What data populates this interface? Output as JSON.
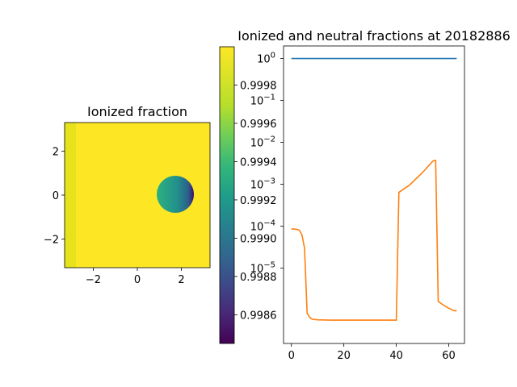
{
  "chart_data": [
    {
      "type": "heatmap",
      "title": "Ionized fraction",
      "xlim": [
        -3.3,
        3.3
      ],
      "ylim": [
        -3.3,
        3.3
      ],
      "xticks": [
        -2,
        0,
        2
      ],
      "yticks": [
        -2,
        0,
        2
      ],
      "tick_labels_x": [
        "−2",
        "0",
        "2"
      ],
      "tick_labels_y": [
        "−2",
        "0",
        "2"
      ],
      "background_value": 1.0,
      "left_strip": {
        "x_range": [
          -3.3,
          -2.9
        ],
        "value": 0.9999
      },
      "blob": {
        "center": [
          1.7,
          -0.2
        ],
        "radius": 0.85,
        "value_left": 0.9993,
        "value_right": 0.9985
      },
      "colormap": "viridis",
      "colorbar": {
        "range": [
          0.99845,
          1.0
        ],
        "ticks": [
          0.9986,
          0.9988,
          0.999,
          0.9992,
          0.9994,
          0.9996,
          0.9998
        ],
        "tick_labels": [
          "0.9986",
          "0.9988",
          "0.9990",
          "0.9992",
          "0.9994",
          "0.9996",
          "0.9998"
        ]
      },
      "grid": false
    },
    {
      "type": "line",
      "title": "Ionized and neutral fractions at 20182886",
      "xlim": [
        -3,
        66
      ],
      "ylim_log10": [
        -6.8,
        0.3
      ],
      "yscale": "log",
      "xticks": [
        0,
        20,
        40,
        60
      ],
      "tick_labels_x": [
        "0",
        "20",
        "40",
        "60"
      ],
      "yticks_log10": [
        0,
        -1,
        -2,
        -3,
        -4,
        -5
      ],
      "tick_labels_y": [
        "10^0",
        "10^-1",
        "10^-2",
        "10^-3",
        "10^-4",
        "10^-5"
      ],
      "series": [
        {
          "color": "#1f77b4",
          "x": [
            0,
            63
          ],
          "y": [
            0.99998,
            0.99998
          ]
        },
        {
          "color": "#ff7f0e",
          "x": [
            0,
            1,
            2,
            3,
            4,
            5,
            6,
            7,
            8,
            10,
            15,
            20,
            30,
            40,
            41,
            45,
            50,
            54,
            55,
            56,
            58,
            60,
            62,
            63
          ],
          "y": [
            8.5e-05,
            8.5e-05,
            8.4e-05,
            8e-05,
            6.3e-05,
            3e-05,
            8.3e-07,
            6.6e-07,
            6e-07,
            5.8e-07,
            5.7e-07,
            5.7e-07,
            5.7e-07,
            5.7e-07,
            0.00064,
            0.00095,
            0.0019,
            0.0036,
            0.0037,
            1.6e-06,
            1.3e-06,
            1.1e-06,
            9.6e-07,
            9.5e-07
          ]
        }
      ],
      "grid": false
    }
  ]
}
